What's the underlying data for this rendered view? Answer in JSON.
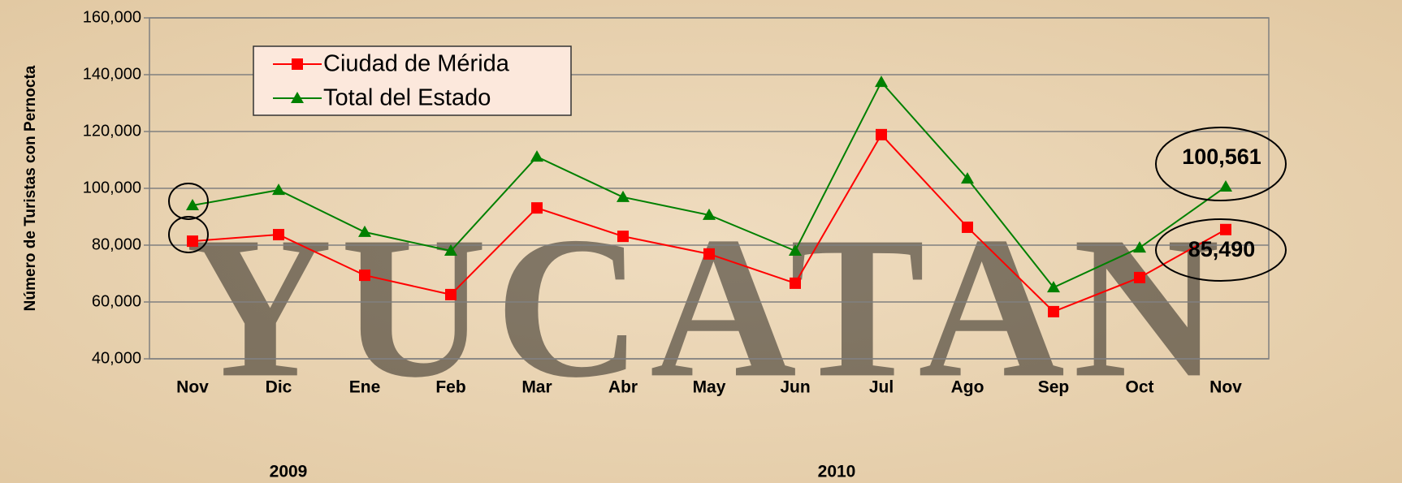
{
  "chart_data": {
    "type": "line",
    "watermark": "YUCATAN",
    "y_axis_label": "Número de Turistas con Pernocta",
    "categories": [
      "Nov",
      "Dic",
      "Ene",
      "Feb",
      "Mar",
      "Abr",
      "May",
      "Jun",
      "Jul",
      "Ago",
      "Sep",
      "Oct",
      "Nov"
    ],
    "year_labels": [
      "2009",
      "2010"
    ],
    "series": [
      {
        "name": "Ciudad de Mérida",
        "color": "#ff0000",
        "marker": "square",
        "values": [
          81400,
          83700,
          69400,
          62600,
          93100,
          83100,
          76900,
          66600,
          118900,
          86300,
          56600,
          68600,
          85490
        ],
        "value_labels": [
          null,
          null,
          null,
          null,
          null,
          null,
          null,
          null,
          null,
          null,
          null,
          null,
          "85,490"
        ]
      },
      {
        "name": "Total del Estado",
        "color": "#008000",
        "marker": "triangle",
        "values": [
          94000,
          99400,
          84600,
          78000,
          111100,
          96900,
          90600,
          78000,
          137400,
          103400,
          65100,
          79100,
          100561
        ],
        "value_labels": [
          null,
          null,
          null,
          null,
          null,
          null,
          null,
          null,
          null,
          null,
          null,
          null,
          "100,561"
        ]
      }
    ],
    "ylim": [
      40000,
      160000
    ],
    "yticks": [
      {
        "value": 40000,
        "label": "40,000"
      },
      {
        "value": 60000,
        "label": "60,000"
      },
      {
        "value": 80000,
        "label": "80,000"
      },
      {
        "value": 100000,
        "label": "100,000"
      },
      {
        "value": 120000,
        "label": "120,000"
      },
      {
        "value": 140000,
        "label": "140,000"
      },
      {
        "value": 160000,
        "label": "160,000"
      }
    ],
    "grid": true,
    "legend": "upper left"
  }
}
